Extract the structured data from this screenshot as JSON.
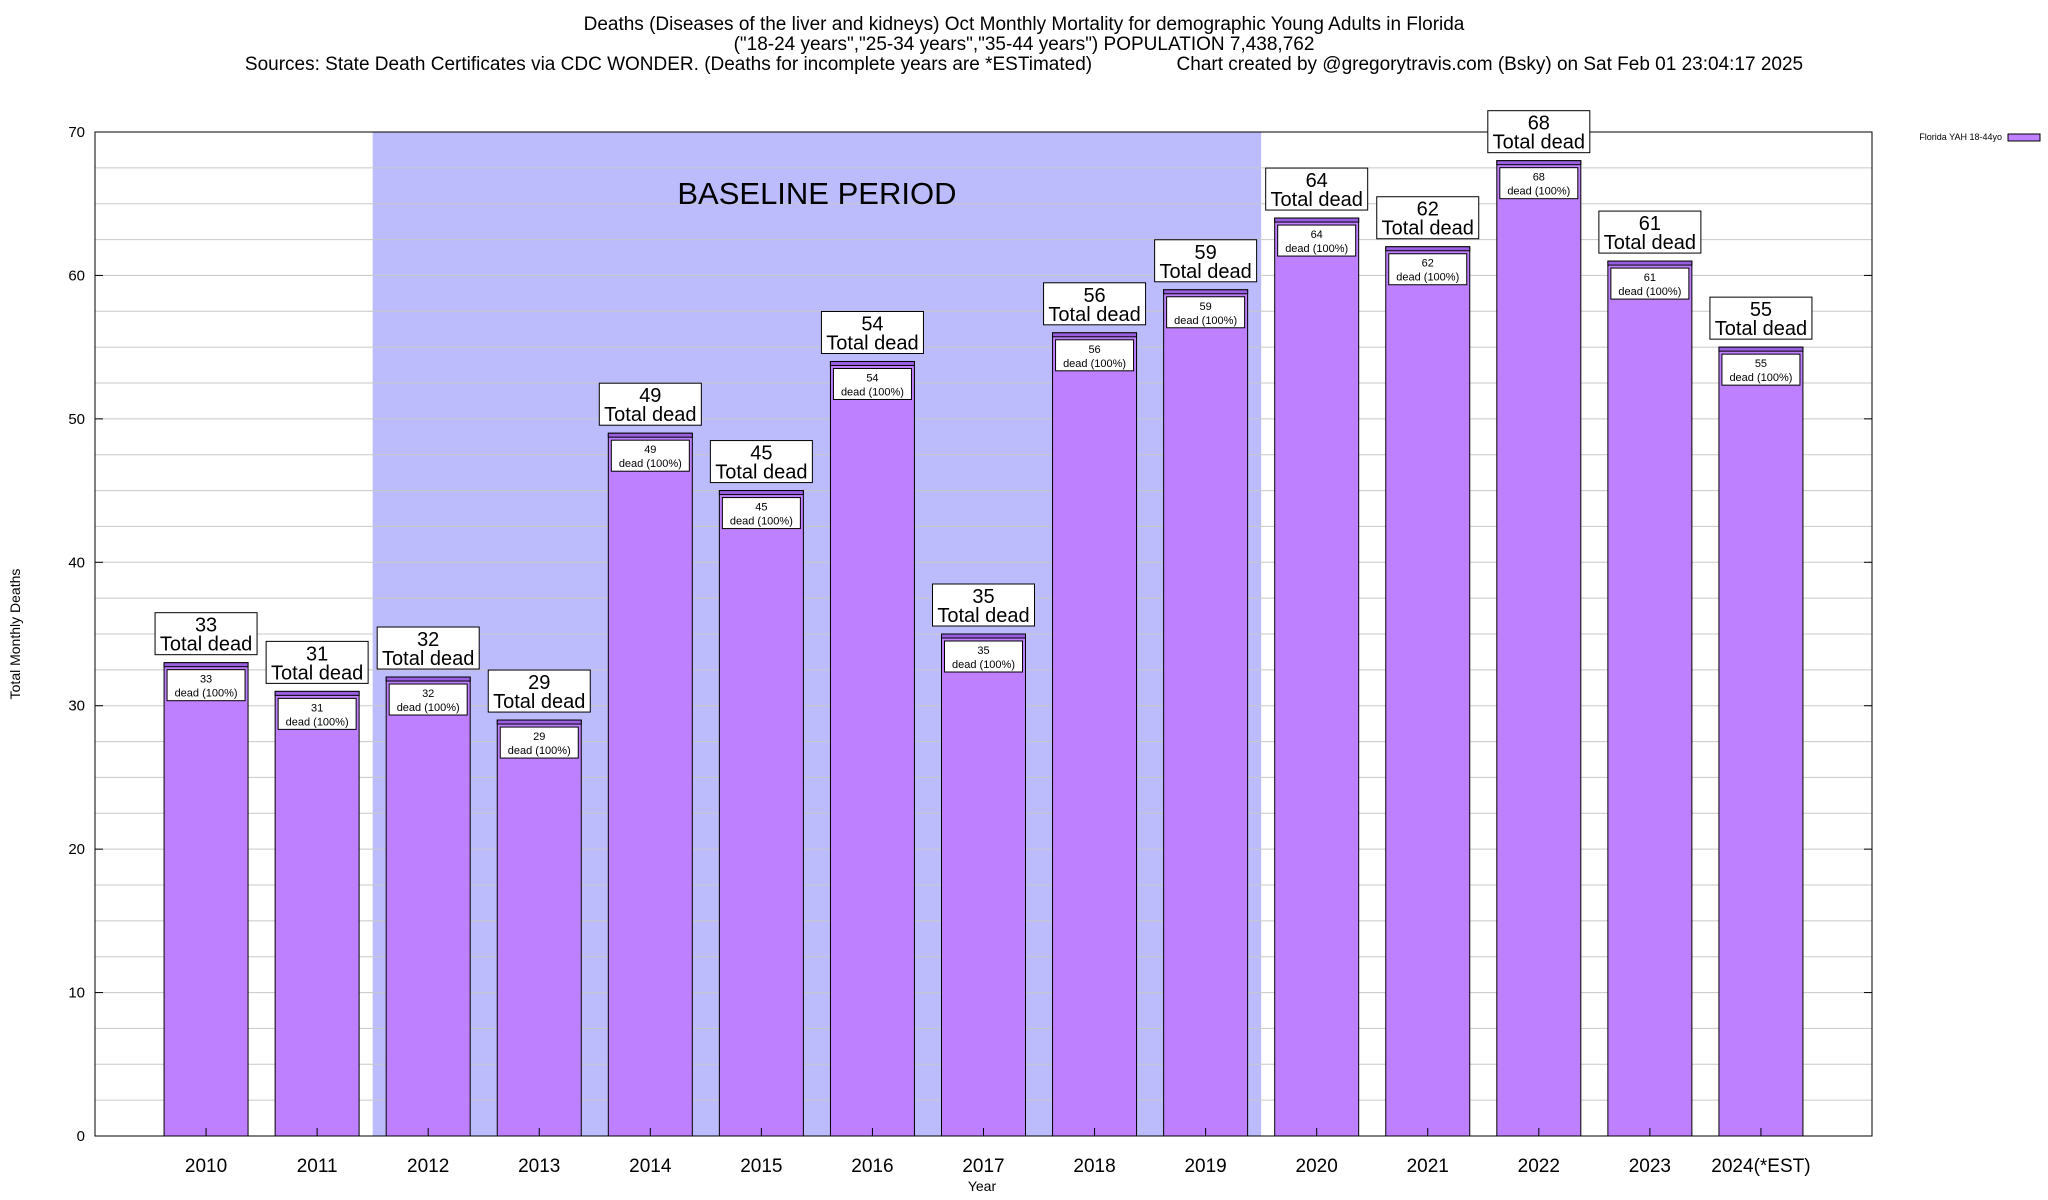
{
  "title_lines": [
    "Deaths (Diseases of the liver and kidneys) Oct Monthly Mortality for demographic Young Adults in Florida",
    "(\"18-24 years\",\"25-34 years\",\"35-44 years\") POPULATION 7,438,762",
    "Sources: State Death Certificates via CDC WONDER. (Deaths for incomplete years are *ESTimated)                Chart created by @gregorytravis.com (Bsky) on Sat Feb 01 23:04:17 2025"
  ],
  "colors": {
    "bar": "#bf80ff",
    "bar_cap": "#9a5fe0",
    "baseline_band": "#bcbcfc",
    "grid": "#c8c8c8"
  },
  "chart_data": {
    "type": "bar",
    "xlabel": "Year",
    "ylabel": "Total Monthly Deaths",
    "ylim": [
      0,
      70
    ],
    "yticks": [
      0,
      10,
      20,
      30,
      40,
      50,
      60,
      70
    ],
    "grid": true,
    "legend": {
      "entries": [
        "Florida YAH 18-44yo"
      ],
      "placement": "top-right"
    },
    "categories": [
      "2010",
      "2011",
      "2012",
      "2013",
      "2014",
      "2015",
      "2016",
      "2017",
      "2018",
      "2019",
      "2020",
      "2021",
      "2022",
      "2023",
      "2024(*EST)"
    ],
    "series": [
      {
        "name": "Florida YAH 18-44yo",
        "values": [
          33,
          31,
          32,
          29,
          49,
          45,
          54,
          35,
          56,
          59,
          64,
          62,
          68,
          61,
          55
        ]
      }
    ],
    "total_label_text": "Total dead",
    "inner_label_text": "dead (100%)",
    "baseline": {
      "label": "BASELINE PERIOD",
      "from": "2012",
      "to": "2019"
    }
  }
}
